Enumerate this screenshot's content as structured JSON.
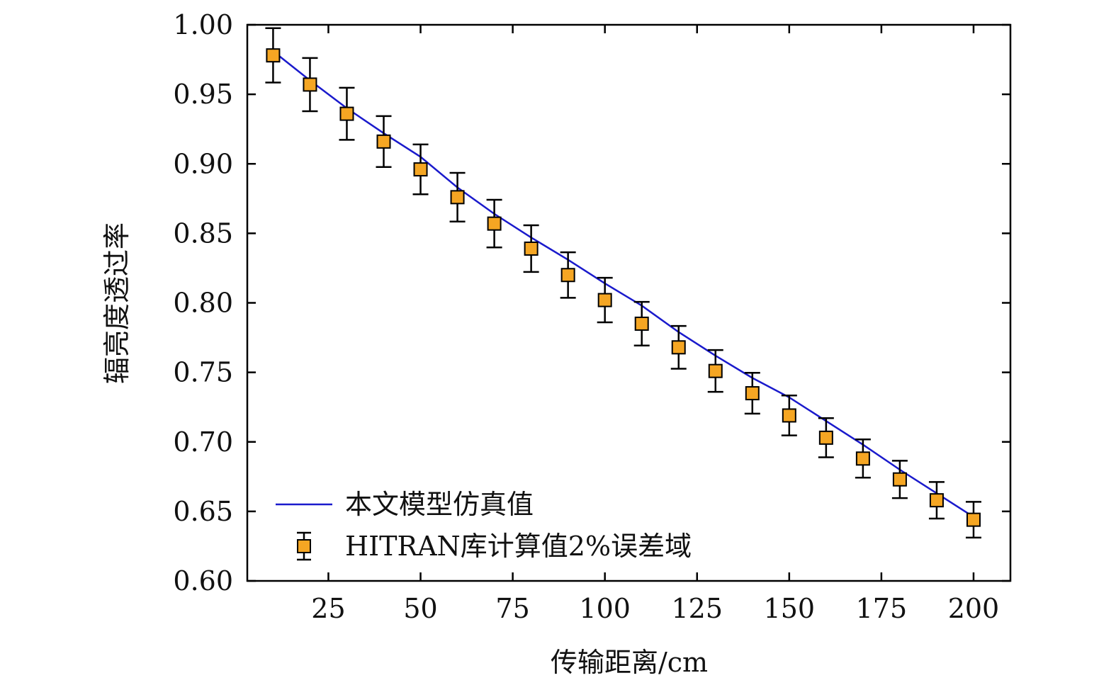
{
  "chart_data": {
    "type": "scatter",
    "xlabel": "传输距离/cm",
    "ylabel": "辐亮度透过率",
    "xlim": [
      3,
      210
    ],
    "ylim": [
      0.6,
      1.0
    ],
    "x_ticks": [
      25,
      50,
      75,
      100,
      125,
      150,
      175,
      200
    ],
    "x_tick_labels": [
      "25",
      "50",
      "75",
      "100",
      "125",
      "150",
      "175",
      "200"
    ],
    "y_ticks": [
      0.6,
      0.65,
      0.7,
      0.75,
      0.8,
      0.85,
      0.9,
      0.95,
      1.0
    ],
    "y_tick_labels": [
      "0.60",
      "0.65",
      "0.70",
      "0.75",
      "0.80",
      "0.85",
      "0.90",
      "0.95",
      "1.00"
    ],
    "grid": false,
    "legend_position": "bottom-left",
    "series": [
      {
        "name": "本文模型仿真值",
        "kind": "line",
        "color": "#1a1acc",
        "x": [
          10,
          20,
          30,
          40,
          50,
          60,
          70,
          80,
          90,
          100,
          110,
          120,
          130,
          140,
          150,
          160,
          170,
          180,
          190,
          200
        ],
        "y": [
          0.981,
          0.96,
          0.94,
          0.922,
          0.905,
          0.883,
          0.864,
          0.847,
          0.831,
          0.814,
          0.798,
          0.779,
          0.762,
          0.746,
          0.732,
          0.715,
          0.698,
          0.68,
          0.663,
          0.646
        ]
      },
      {
        "name": "HITRAN库计算值2%误差域",
        "kind": "errorbar",
        "color": "#f5a623",
        "x": [
          10,
          20,
          30,
          40,
          50,
          60,
          70,
          80,
          90,
          100,
          110,
          120,
          130,
          140,
          150,
          160,
          170,
          180,
          190,
          200
        ],
        "y": [
          0.978,
          0.957,
          0.936,
          0.916,
          0.896,
          0.876,
          0.857,
          0.839,
          0.82,
          0.802,
          0.785,
          0.768,
          0.751,
          0.735,
          0.719,
          0.703,
          0.688,
          0.673,
          0.658,
          0.644
        ],
        "error_pct": 2
      }
    ]
  }
}
